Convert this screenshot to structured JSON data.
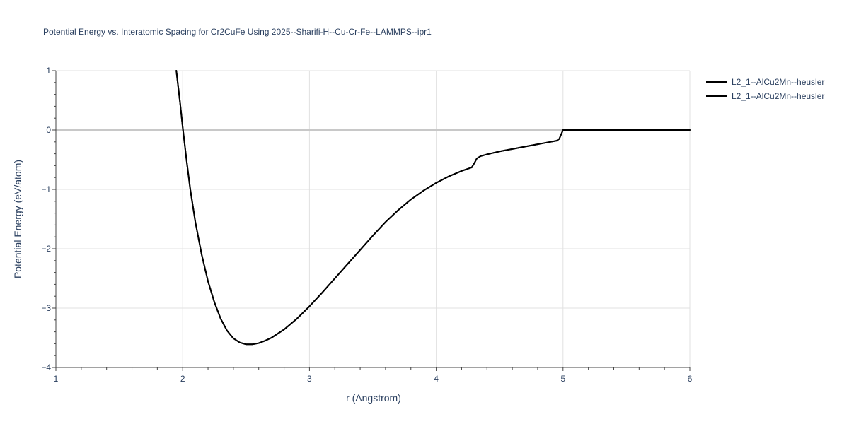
{
  "chart_data": {
    "type": "line",
    "title": "Potential Energy vs. Interatomic Spacing for Cr2CuFe Using 2025--Sharifi-H--Cu-Cr-Fe--LAMMPS--ipr1",
    "xlabel": "r (Angstrom)",
    "ylabel": "Potential Energy (eV/atom)",
    "xlim": [
      1,
      6
    ],
    "ylim": [
      -4,
      1
    ],
    "xticks": [
      "1",
      "2",
      "3",
      "4",
      "5",
      "6"
    ],
    "yticks": [
      "1",
      "0",
      "−1",
      "−2",
      "−3",
      "−4"
    ],
    "xtick_values": [
      1,
      2,
      3,
      4,
      5,
      6
    ],
    "ytick_values": [
      1,
      0,
      -1,
      -2,
      -3,
      -4
    ],
    "grid": true,
    "legend_position": "top-right",
    "series": [
      {
        "name": "L2_1--AlCu2Mn--heusler",
        "color": "#000000",
        "x": [
          1.95,
          1.98,
          2.0,
          2.03,
          2.06,
          2.1,
          2.15,
          2.2,
          2.25,
          2.3,
          2.35,
          2.4,
          2.45,
          2.5,
          2.55,
          2.6,
          2.65,
          2.7,
          2.8,
          2.9,
          3.0,
          3.1,
          3.2,
          3.3,
          3.4,
          3.5,
          3.6,
          3.7,
          3.8,
          3.9,
          4.0,
          4.1,
          4.2,
          4.28,
          4.3,
          4.32,
          4.35,
          4.4,
          4.5,
          4.6,
          4.7,
          4.8,
          4.9,
          4.95,
          4.97,
          5.0,
          5.5,
          6.0
        ],
        "values": [
          1.0,
          0.45,
          0.05,
          -0.5,
          -1.0,
          -1.55,
          -2.1,
          -2.55,
          -2.9,
          -3.18,
          -3.38,
          -3.51,
          -3.58,
          -3.61,
          -3.61,
          -3.59,
          -3.55,
          -3.5,
          -3.36,
          -3.18,
          -2.97,
          -2.74,
          -2.5,
          -2.26,
          -2.02,
          -1.78,
          -1.55,
          -1.35,
          -1.17,
          -1.02,
          -0.89,
          -0.78,
          -0.69,
          -0.63,
          -0.56,
          -0.48,
          -0.44,
          -0.41,
          -0.36,
          -0.32,
          -0.28,
          -0.24,
          -0.2,
          -0.18,
          -0.15,
          0.0,
          0.0,
          0.0
        ]
      },
      {
        "name": "L2_1--AlCu2Mn--heusler",
        "color": "#000000",
        "x": [
          1.95,
          1.98,
          2.0,
          2.03,
          2.06,
          2.1,
          2.15,
          2.2,
          2.25,
          2.3,
          2.35,
          2.4,
          2.45,
          2.5,
          2.55,
          2.6,
          2.65,
          2.7,
          2.8,
          2.9,
          3.0,
          3.1,
          3.2,
          3.3,
          3.4,
          3.5,
          3.6,
          3.7,
          3.8,
          3.9,
          4.0,
          4.1,
          4.2,
          4.28,
          4.3,
          4.32,
          4.35,
          4.4,
          4.5,
          4.6,
          4.7,
          4.8,
          4.9,
          4.95,
          4.97,
          5.0,
          5.5,
          6.0
        ],
        "values": [
          1.0,
          0.45,
          0.05,
          -0.5,
          -1.0,
          -1.55,
          -2.1,
          -2.55,
          -2.9,
          -3.18,
          -3.38,
          -3.51,
          -3.58,
          -3.61,
          -3.61,
          -3.59,
          -3.55,
          -3.5,
          -3.36,
          -3.18,
          -2.97,
          -2.74,
          -2.5,
          -2.26,
          -2.02,
          -1.78,
          -1.55,
          -1.35,
          -1.17,
          -1.02,
          -0.89,
          -0.78,
          -0.69,
          -0.63,
          -0.56,
          -0.48,
          -0.44,
          -0.41,
          -0.36,
          -0.32,
          -0.28,
          -0.24,
          -0.2,
          -0.18,
          -0.15,
          0.0,
          0.0,
          0.0
        ]
      }
    ]
  }
}
